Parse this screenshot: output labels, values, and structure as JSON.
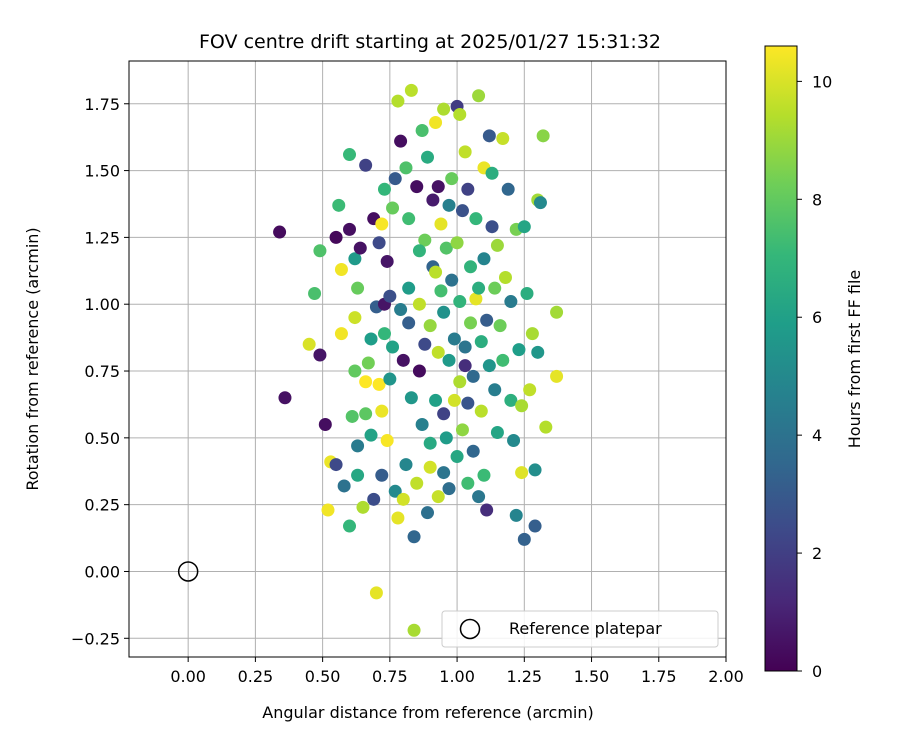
{
  "chart_data": {
    "type": "scatter",
    "title": "FOV centre drift starting at 2025/01/27 15:31:32",
    "xlabel": "Angular distance from reference (arcmin)",
    "ylabel": "Rotation from reference (arcmin)",
    "xlim": [
      -0.22,
      2.0
    ],
    "ylim": [
      -0.32,
      1.91
    ],
    "xticks": [
      "0.00",
      "0.25",
      "0.50",
      "0.75",
      "1.00",
      "1.25",
      "1.50",
      "1.75",
      "2.00"
    ],
    "yticks": [
      "−0.25",
      "0.00",
      "0.25",
      "0.50",
      "0.75",
      "1.00",
      "1.25",
      "1.50",
      "1.75"
    ],
    "grid": true,
    "colorbar": {
      "label": "Hours from first FF file",
      "range": [
        0,
        10.6
      ],
      "ticks": [
        "0",
        "2",
        "4",
        "6",
        "8",
        "10"
      ],
      "colormap": "viridis",
      "colors": [
        "#440154",
        "#482878",
        "#3e4989",
        "#31688e",
        "#26828e",
        "#1f9e89",
        "#35b779",
        "#6ece58",
        "#b5de2b",
        "#fde725"
      ]
    },
    "reference": {
      "x": 0.0,
      "y": 0.0,
      "label": "Reference platepar"
    },
    "legend_position": "lower right",
    "points": [
      [
        0.34,
        1.27,
        0.3
      ],
      [
        0.36,
        0.65,
        0.5
      ],
      [
        0.45,
        0.85,
        10.0
      ],
      [
        0.47,
        1.04,
        7.5
      ],
      [
        0.49,
        0.81,
        0.6
      ],
      [
        0.49,
        1.2,
        7.6
      ],
      [
        0.51,
        0.55,
        0.4
      ],
      [
        0.52,
        0.23,
        10.4
      ],
      [
        0.53,
        0.41,
        10.3
      ],
      [
        0.55,
        0.4,
        2.4
      ],
      [
        0.55,
        1.25,
        0.2
      ],
      [
        0.56,
        1.37,
        7.2
      ],
      [
        0.57,
        0.89,
        10.4
      ],
      [
        0.57,
        1.13,
        10.4
      ],
      [
        0.58,
        0.32,
        4.0
      ],
      [
        0.6,
        1.56,
        7.1
      ],
      [
        0.6,
        1.28,
        0.4
      ],
      [
        0.6,
        0.17,
        7.0
      ],
      [
        0.61,
        0.58,
        7.7
      ],
      [
        0.62,
        1.17,
        5.7
      ],
      [
        0.62,
        0.95,
        9.8
      ],
      [
        0.62,
        0.75,
        8.0
      ],
      [
        0.63,
        0.36,
        6.3
      ],
      [
        0.63,
        1.06,
        8.1
      ],
      [
        0.63,
        0.47,
        4.4
      ],
      [
        0.64,
        1.21,
        0.5
      ],
      [
        0.65,
        0.24,
        9.3
      ],
      [
        0.66,
        0.59,
        7.9
      ],
      [
        0.66,
        0.71,
        10.6
      ],
      [
        0.66,
        1.52,
        2.1
      ],
      [
        0.67,
        0.78,
        8.3
      ],
      [
        0.68,
        0.87,
        5.9
      ],
      [
        0.68,
        0.51,
        6.1
      ],
      [
        0.69,
        0.27,
        2.5
      ],
      [
        0.69,
        1.32,
        0.4
      ],
      [
        0.7,
        -0.08,
        10.2
      ],
      [
        0.7,
        0.99,
        3.2
      ],
      [
        0.71,
        1.23,
        2.4
      ],
      [
        0.71,
        0.7,
        10.6
      ],
      [
        0.72,
        0.36,
        3.1
      ],
      [
        0.72,
        0.6,
        10.3
      ],
      [
        0.72,
        1.3,
        10.5
      ],
      [
        0.73,
        0.89,
        7.0
      ],
      [
        0.73,
        1.0,
        0.6
      ],
      [
        0.73,
        1.43,
        7.0
      ],
      [
        0.74,
        0.49,
        10.5
      ],
      [
        0.74,
        1.16,
        0.6
      ],
      [
        0.75,
        0.72,
        5.5
      ],
      [
        0.75,
        1.03,
        2.6
      ],
      [
        0.76,
        0.84,
        6.1
      ],
      [
        0.77,
        0.3,
        5.0
      ],
      [
        0.77,
        1.47,
        3.0
      ],
      [
        0.78,
        0.2,
        10.2
      ],
      [
        0.78,
        1.76,
        9.4
      ],
      [
        0.79,
        1.61,
        0.4
      ],
      [
        0.79,
        0.98,
        4.5
      ],
      [
        0.8,
        0.79,
        0.5
      ],
      [
        0.8,
        0.27,
        9.9
      ],
      [
        0.81,
        0.4,
        4.9
      ],
      [
        0.81,
        1.51,
        7.6
      ],
      [
        0.82,
        1.32,
        7.3
      ],
      [
        0.82,
        0.93,
        3.2
      ],
      [
        0.82,
        1.06,
        5.8
      ],
      [
        0.83,
        1.8,
        9.5
      ],
      [
        0.83,
        0.65,
        5.6
      ],
      [
        0.84,
        0.13,
        3.5
      ],
      [
        0.84,
        -0.22,
        9.2
      ],
      [
        0.85,
        0.33,
        9.6
      ],
      [
        0.85,
        1.44,
        0.4
      ],
      [
        0.86,
        0.75,
        0.3
      ],
      [
        0.86,
        1.0,
        9.6
      ],
      [
        0.87,
        0.55,
        4.6
      ],
      [
        0.87,
        1.65,
        7.5
      ],
      [
        0.88,
        0.85,
        2.4
      ],
      [
        0.88,
        1.24,
        8.2
      ],
      [
        0.89,
        0.22,
        3.9
      ],
      [
        0.89,
        1.55,
        6.5
      ],
      [
        0.9,
        0.39,
        9.9
      ],
      [
        0.9,
        0.48,
        6.4
      ],
      [
        0.9,
        0.92,
        8.9
      ],
      [
        0.91,
        1.39,
        0.8
      ],
      [
        0.91,
        1.14,
        3.4
      ],
      [
        0.92,
        0.64,
        6.0
      ],
      [
        0.92,
        1.68,
        10.4
      ],
      [
        0.93,
        0.28,
        9.7
      ],
      [
        0.93,
        0.82,
        9.6
      ],
      [
        0.93,
        1.44,
        0.5
      ],
      [
        0.94,
        1.3,
        10.2
      ],
      [
        0.94,
        1.05,
        7.4
      ],
      [
        0.95,
        0.37,
        4.1
      ],
      [
        0.95,
        0.59,
        2.1
      ],
      [
        0.95,
        1.73,
        9.3
      ],
      [
        0.96,
        1.21,
        7.7
      ],
      [
        0.96,
        0.5,
        5.8
      ],
      [
        0.97,
        0.79,
        5.7
      ],
      [
        0.97,
        0.31,
        3.8
      ],
      [
        0.98,
        1.09,
        4.0
      ],
      [
        0.98,
        1.47,
        8.1
      ],
      [
        0.99,
        0.64,
        9.9
      ],
      [
        0.99,
        0.87,
        4.4
      ],
      [
        1.0,
        1.74,
        1.9
      ],
      [
        1.0,
        1.23,
        8.8
      ],
      [
        1.0,
        0.43,
        6.3
      ],
      [
        1.01,
        1.71,
        9.4
      ],
      [
        1.01,
        1.01,
        6.9
      ],
      [
        1.02,
        0.53,
        8.8
      ],
      [
        1.02,
        1.35,
        2.7
      ],
      [
        1.03,
        0.84,
        4.1
      ],
      [
        1.03,
        1.57,
        9.6
      ],
      [
        1.04,
        0.33,
        7.3
      ],
      [
        1.04,
        0.63,
        2.8
      ],
      [
        1.04,
        1.43,
        2.1
      ],
      [
        1.05,
        1.14,
        6.9
      ],
      [
        1.05,
        0.93,
        8.4
      ],
      [
        1.06,
        0.45,
        3.5
      ],
      [
        1.06,
        0.73,
        3.6
      ],
      [
        1.07,
        1.32,
        7.0
      ],
      [
        1.07,
        1.02,
        10.2
      ],
      [
        1.08,
        0.28,
        4.2
      ],
      [
        1.08,
        1.78,
        9.0
      ],
      [
        1.09,
        0.6,
        9.5
      ],
      [
        1.09,
        0.86,
        6.6
      ],
      [
        1.1,
        1.51,
        10.3
      ],
      [
        1.1,
        1.17,
        4.8
      ],
      [
        1.1,
        0.36,
        7.2
      ],
      [
        1.11,
        0.94,
        3.1
      ],
      [
        1.11,
        0.23,
        1.4
      ],
      [
        1.12,
        1.63,
        3.0
      ],
      [
        1.12,
        0.77,
        5.5
      ],
      [
        1.13,
        1.49,
        6.6
      ],
      [
        1.13,
        1.29,
        2.6
      ],
      [
        1.14,
        0.68,
        4.5
      ],
      [
        1.14,
        1.06,
        8.2
      ],
      [
        1.15,
        0.52,
        6.2
      ],
      [
        1.15,
        1.22,
        9.0
      ],
      [
        1.16,
        0.92,
        8.2
      ],
      [
        1.17,
        1.62,
        9.7
      ],
      [
        1.17,
        0.79,
        7.3
      ],
      [
        1.18,
        1.1,
        9.4
      ],
      [
        1.19,
        1.43,
        3.5
      ],
      [
        1.2,
        0.64,
        6.7
      ],
      [
        1.2,
        1.01,
        4.4
      ],
      [
        1.21,
        0.49,
        5.0
      ],
      [
        1.22,
        1.28,
        8.4
      ],
      [
        1.22,
        0.21,
        4.8
      ],
      [
        1.23,
        0.83,
        5.9
      ],
      [
        1.24,
        0.37,
        10.1
      ],
      [
        1.24,
        0.62,
        9.2
      ],
      [
        1.25,
        1.29,
        6.2
      ],
      [
        1.25,
        0.12,
        3.3
      ],
      [
        1.26,
        1.04,
        6.6
      ],
      [
        1.27,
        0.68,
        9.6
      ],
      [
        1.28,
        0.89,
        9.2
      ],
      [
        1.29,
        0.38,
        5.2
      ],
      [
        1.29,
        0.17,
        3.2
      ],
      [
        1.3,
        1.39,
        9.1
      ],
      [
        1.3,
        0.82,
        5.6
      ],
      [
        1.31,
        1.38,
        5.0
      ],
      [
        1.32,
        1.63,
        8.7
      ],
      [
        1.33,
        0.54,
        9.4
      ],
      [
        1.37,
        0.97,
        9.1
      ],
      [
        1.37,
        0.73,
        10.2
      ],
      [
        0.76,
        1.36,
        8.1
      ],
      [
        0.86,
        1.2,
        6.9
      ],
      [
        0.92,
        1.12,
        9.5
      ],
      [
        0.97,
        1.37,
        4.6
      ],
      [
        1.01,
        0.71,
        9.3
      ],
      [
        1.03,
        0.77,
        1.4
      ],
      [
        0.95,
        0.97,
        5.4
      ],
      [
        1.08,
        1.06,
        6.6
      ]
    ]
  }
}
